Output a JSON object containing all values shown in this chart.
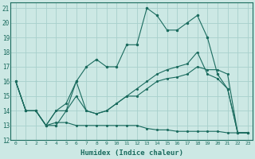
{
  "xlabel": "Humidex (Indice chaleur)",
  "bg_color": "#cce8e4",
  "grid_color": "#a8d0cc",
  "line_color": "#1a6b5e",
  "xlim_min": -0.5,
  "xlim_max": 23.5,
  "ylim_min": 12,
  "ylim_max": 21.4,
  "xticks": [
    0,
    1,
    2,
    3,
    4,
    5,
    6,
    7,
    8,
    9,
    10,
    11,
    12,
    13,
    14,
    15,
    16,
    17,
    18,
    19,
    20,
    21,
    22,
    23
  ],
  "yticks": [
    12,
    13,
    14,
    15,
    16,
    17,
    18,
    19,
    20,
    21
  ],
  "line1_x": [
    0,
    1,
    2,
    3,
    4,
    5,
    6,
    7,
    8,
    9,
    10,
    11,
    12,
    13,
    14,
    15,
    16,
    17,
    18,
    19,
    20,
    21,
    22,
    23
  ],
  "line1_y": [
    16,
    14,
    14,
    13,
    13.2,
    13.2,
    13,
    13,
    13,
    13,
    13,
    13,
    13,
    12.8,
    12.7,
    12.7,
    12.6,
    12.6,
    12.6,
    12.6,
    12.6,
    12.5,
    12.5,
    12.5
  ],
  "line2_x": [
    0,
    1,
    2,
    3,
    4,
    5,
    6,
    7,
    8,
    9,
    10,
    11,
    12,
    13,
    14,
    15,
    16,
    17,
    18,
    19,
    20,
    21,
    22,
    23
  ],
  "line2_y": [
    16,
    14,
    14,
    13,
    13,
    14,
    16,
    17,
    17.5,
    17,
    17,
    18.5,
    18.5,
    21,
    20.5,
    19.5,
    19.5,
    20,
    20.5,
    19,
    16.5,
    15.5,
    12.5,
    12.5
  ],
  "line3_x": [
    0,
    1,
    2,
    3,
    4,
    5,
    6,
    7,
    8,
    9,
    10,
    11,
    12,
    13,
    14,
    15,
    16,
    17,
    18,
    19,
    20,
    21,
    22,
    23
  ],
  "line3_y": [
    16,
    14,
    14,
    13,
    14,
    14,
    15,
    14,
    13.8,
    14,
    14.5,
    15,
    15,
    15.5,
    16,
    16.2,
    16.3,
    16.5,
    17,
    16.8,
    16.8,
    16.5,
    12.5,
    12.5
  ],
  "line4_x": [
    0,
    1,
    2,
    3,
    4,
    5,
    6,
    7,
    8,
    9,
    10,
    11,
    12,
    13,
    14,
    15,
    16,
    17,
    18,
    19,
    20,
    21,
    22,
    23
  ],
  "line4_y": [
    16,
    14,
    14,
    13,
    14,
    14.5,
    16,
    14,
    13.8,
    14,
    14.5,
    15,
    15.5,
    16,
    16.5,
    16.8,
    17.0,
    17.2,
    18,
    16.5,
    16.2,
    15.5,
    12.5,
    12.5
  ]
}
